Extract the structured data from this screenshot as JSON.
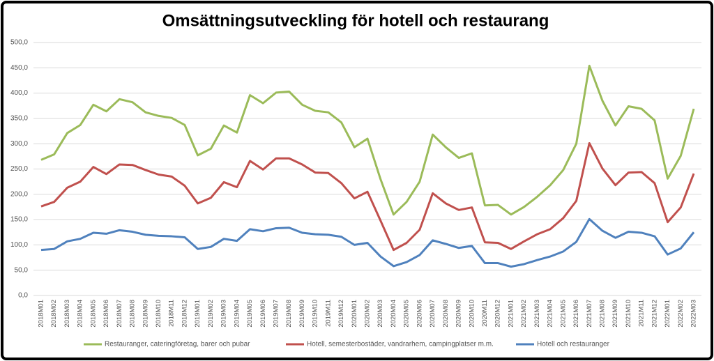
{
  "chart_data": {
    "type": "line",
    "title": "Omsättningsutveckling för hotell och restaurang",
    "categories": [
      "2018M01",
      "2018M02",
      "2018M03",
      "2018M04",
      "2018M05",
      "2018M06",
      "2018M07",
      "2018M08",
      "2018M09",
      "2018M10",
      "2018M11",
      "2018M12",
      "2019M01",
      "2019M02",
      "2019M03",
      "2019M04",
      "2019M05",
      "2019M06",
      "2019M07",
      "2019M08",
      "2019M09",
      "2019M10",
      "2019M11",
      "2019M12",
      "2020M01",
      "2020M02",
      "2020M03",
      "2020M04",
      "2020M05",
      "2020M06",
      "2020M07",
      "2020M08",
      "2020M09",
      "2020M10",
      "2020M11",
      "2020M12",
      "2021M01",
      "2021M02",
      "2021M03",
      "2021M04",
      "2021M05",
      "2021M06",
      "2021M07",
      "2021M08",
      "2021M09",
      "2021M10",
      "2021M11",
      "2021M12",
      "2022M01",
      "2022M02",
      "2022M03"
    ],
    "series": [
      {
        "name": "Restauranger, cateringföretag, barer och pubar",
        "color": "#9bbb59",
        "values": [
          268,
          279,
          321,
          337,
          377,
          364,
          388,
          382,
          362,
          355,
          351,
          337,
          277,
          290,
          336,
          322,
          396,
          380,
          401,
          403,
          377,
          365,
          362,
          342,
          293,
          310,
          230,
          160,
          185,
          225,
          318,
          293,
          272,
          281,
          178,
          179,
          160,
          175,
          195,
          218,
          248,
          300,
          454,
          385,
          336,
          374,
          369,
          346,
          231,
          276,
          369
        ]
      },
      {
        "name": "Hotell, semesterbostäder, vandrarhem, campingplatser m.m.",
        "color": "#c0504d",
        "values": [
          176,
          185,
          213,
          225,
          254,
          240,
          259,
          258,
          248,
          239,
          235,
          217,
          182,
          193,
          224,
          214,
          266,
          249,
          271,
          271,
          259,
          243,
          242,
          222,
          192,
          205,
          148,
          90,
          104,
          130,
          202,
          182,
          169,
          174,
          105,
          104,
          92,
          107,
          121,
          131,
          153,
          187,
          301,
          251,
          218,
          243,
          244,
          222,
          145,
          174,
          241
        ]
      },
      {
        "name": "Hotell och restauranger",
        "color": "#4f81bd",
        "values": [
          90,
          92,
          107,
          112,
          124,
          122,
          129,
          126,
          120,
          118,
          117,
          115,
          92,
          96,
          112,
          108,
          131,
          127,
          133,
          134,
          124,
          121,
          120,
          116,
          100,
          104,
          77,
          58,
          66,
          80,
          109,
          102,
          94,
          98,
          64,
          64,
          57,
          62,
          70,
          77,
          87,
          106,
          151,
          128,
          114,
          126,
          124,
          117,
          81,
          93,
          125
        ]
      }
    ],
    "ylim": [
      0,
      500
    ],
    "yticks": [
      {
        "value": 0,
        "label": "0,0"
      },
      {
        "value": 50,
        "label": "50,0"
      },
      {
        "value": 100,
        "label": "100,0"
      },
      {
        "value": 150,
        "label": "150,0"
      },
      {
        "value": 200,
        "label": "200,0"
      },
      {
        "value": 250,
        "label": "250,0"
      },
      {
        "value": 300,
        "label": "300,0"
      },
      {
        "value": 350,
        "label": "350,0"
      },
      {
        "value": 400,
        "label": "400,0"
      },
      {
        "value": 450,
        "label": "450,0"
      },
      {
        "value": 500,
        "label": "500,0"
      }
    ],
    "grid": true,
    "legend": "bottom"
  }
}
